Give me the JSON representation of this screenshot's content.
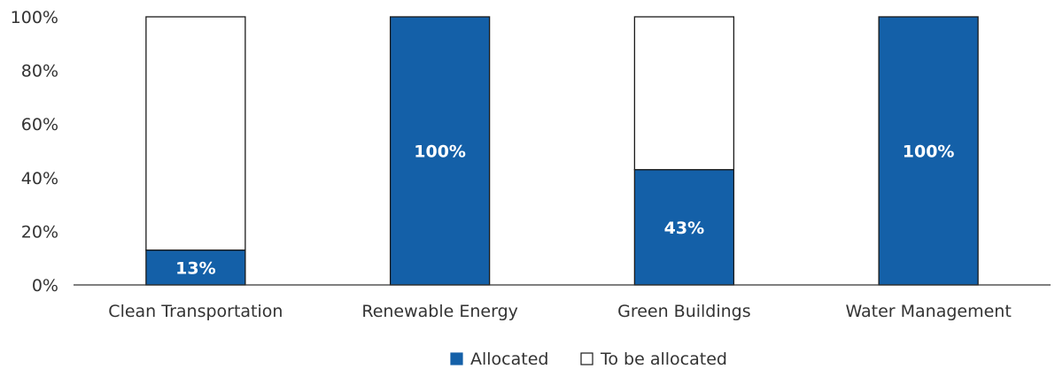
{
  "chart_data": {
    "type": "bar",
    "stacked": true,
    "categories": [
      "Clean Transportation",
      "Renewable Energy",
      "Green Buildings",
      "Water Management"
    ],
    "series": [
      {
        "name": "Allocated",
        "values": [
          13,
          100,
          43,
          100
        ],
        "color": "#1460a8"
      },
      {
        "name": "To be allocated",
        "values": [
          87,
          0,
          57,
          0
        ],
        "color": "#ffffff"
      }
    ],
    "data_labels": [
      "13%",
      "100%",
      "43%",
      "100%"
    ],
    "yticks": [
      "0%",
      "20%",
      "40%",
      "60%",
      "80%",
      "100%"
    ],
    "ylim": [
      0,
      100
    ],
    "title": "",
    "xlabel": "",
    "ylabel": "",
    "legend_position": "bottom-center",
    "grid": false
  }
}
